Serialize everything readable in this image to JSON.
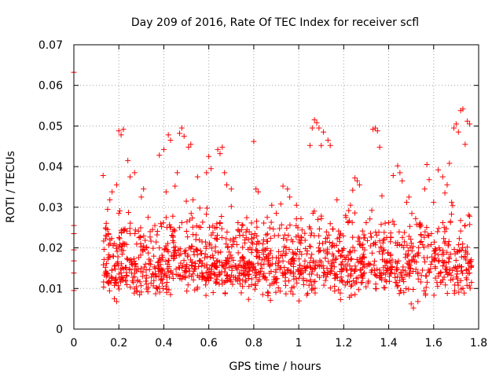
{
  "chart_data": {
    "type": "scatter",
    "title": "Day 209 of 2016, Rate Of TEC Index for receiver scfl",
    "xlabel": "GPS time / hours",
    "ylabel": "ROTI / TECUs",
    "xlim": [
      0,
      1.8
    ],
    "ylim": [
      0,
      0.07
    ],
    "xticks": [
      "0",
      "0.2",
      "0.4",
      "0.6",
      "0.8",
      "1",
      "1.2",
      "1.4",
      "1.6",
      "1.8"
    ],
    "yticks": [
      "0",
      "0.01",
      "0.02",
      "0.03",
      "0.04",
      "0.05",
      "0.06",
      "0.07"
    ],
    "grid": true,
    "marker": "plus",
    "color": "#ff0000",
    "series": [
      {
        "points": [
          [
            0.0,
            0.0632
          ],
          [
            0.0,
            0.0255
          ],
          [
            0.0,
            0.0235
          ],
          [
            0.0,
            0.0195
          ],
          [
            0.0,
            0.0168
          ],
          [
            0.0,
            0.0138
          ],
          [
            0.0,
            0.0095
          ],
          [
            0.13,
            0.0378
          ],
          [
            0.14,
            0.0152
          ],
          [
            0.14,
            0.0138
          ],
          [
            0.15,
            0.0245
          ],
          [
            0.15,
            0.0295
          ],
          [
            0.16,
            0.0318
          ],
          [
            0.16,
            0.0178
          ],
          [
            0.17,
            0.0338
          ],
          [
            0.17,
            0.0125
          ],
          [
            0.18,
            0.0155
          ],
          [
            0.18,
            0.0075
          ],
          [
            0.19,
            0.0355
          ],
          [
            0.19,
            0.0068
          ],
          [
            0.2,
            0.0488
          ],
          [
            0.2,
            0.0285
          ],
          [
            0.21,
            0.0478
          ],
          [
            0.21,
            0.0195
          ],
          [
            0.22,
            0.0492
          ],
          [
            0.22,
            0.0245
          ],
          [
            0.23,
            0.0118
          ],
          [
            0.24,
            0.0415
          ],
          [
            0.25,
            0.0375
          ],
          [
            0.25,
            0.0235
          ],
          [
            0.26,
            0.0158
          ],
          [
            0.27,
            0.0385
          ],
          [
            0.28,
            0.0092
          ],
          [
            0.29,
            0.0225
          ],
          [
            0.3,
            0.0325
          ],
          [
            0.31,
            0.0205
          ],
          [
            0.31,
            0.0345
          ],
          [
            0.32,
            0.0118
          ],
          [
            0.33,
            0.0275
          ],
          [
            0.34,
            0.0168
          ],
          [
            0.35,
            0.0245
          ],
          [
            0.36,
            0.0255
          ],
          [
            0.37,
            0.0232
          ],
          [
            0.38,
            0.0428
          ],
          [
            0.38,
            0.0148
          ],
          [
            0.39,
            0.0252
          ],
          [
            0.4,
            0.0442
          ],
          [
            0.41,
            0.0338
          ],
          [
            0.41,
            0.0205
          ],
          [
            0.42,
            0.0478
          ],
          [
            0.43,
            0.0465
          ],
          [
            0.43,
            0.0085
          ],
          [
            0.44,
            0.0278
          ],
          [
            0.45,
            0.0352
          ],
          [
            0.45,
            0.0188
          ],
          [
            0.46,
            0.0385
          ],
          [
            0.47,
            0.0482
          ],
          [
            0.48,
            0.0495
          ],
          [
            0.48,
            0.0262
          ],
          [
            0.49,
            0.0475
          ],
          [
            0.5,
            0.0315
          ],
          [
            0.5,
            0.0142
          ],
          [
            0.51,
            0.0448
          ],
          [
            0.52,
            0.0455
          ],
          [
            0.53,
            0.0318
          ],
          [
            0.54,
            0.0162
          ],
          [
            0.55,
            0.0375
          ],
          [
            0.55,
            0.0132
          ],
          [
            0.56,
            0.0298
          ],
          [
            0.57,
            0.0215
          ],
          [
            0.58,
            0.0155
          ],
          [
            0.59,
            0.0385
          ],
          [
            0.6,
            0.0425
          ],
          [
            0.6,
            0.0128
          ],
          [
            0.61,
            0.0395
          ],
          [
            0.62,
            0.0175
          ],
          [
            0.63,
            0.0118
          ],
          [
            0.64,
            0.0442
          ],
          [
            0.65,
            0.0432
          ],
          [
            0.65,
            0.0262
          ],
          [
            0.66,
            0.0448
          ],
          [
            0.67,
            0.0385
          ],
          [
            0.67,
            0.0115
          ],
          [
            0.68,
            0.0355
          ],
          [
            0.69,
            0.0152
          ],
          [
            0.7,
            0.0302
          ],
          [
            0.7,
            0.0345
          ],
          [
            0.71,
            0.0128
          ],
          [
            0.72,
            0.0225
          ],
          [
            0.73,
            0.0262
          ],
          [
            0.74,
            0.0168
          ],
          [
            0.75,
            0.0105
          ],
          [
            0.76,
            0.0212
          ],
          [
            0.77,
            0.0245
          ],
          [
            0.78,
            0.0135
          ],
          [
            0.79,
            0.0162
          ],
          [
            0.8,
            0.0462
          ],
          [
            0.8,
            0.0225
          ],
          [
            0.81,
            0.0345
          ],
          [
            0.82,
            0.0338
          ],
          [
            0.83,
            0.0142
          ],
          [
            0.84,
            0.0085
          ],
          [
            0.85,
            0.0195
          ],
          [
            0.86,
            0.0275
          ],
          [
            0.87,
            0.0155
          ],
          [
            0.88,
            0.0305
          ],
          [
            0.89,
            0.0122
          ],
          [
            0.9,
            0.0285
          ],
          [
            0.91,
            0.0175
          ],
          [
            0.92,
            0.0308
          ],
          [
            0.93,
            0.0352
          ],
          [
            0.94,
            0.0118
          ],
          [
            0.95,
            0.0345
          ],
          [
            0.96,
            0.0325
          ],
          [
            0.97,
            0.0102
          ],
          [
            0.98,
            0.0168
          ],
          [
            0.99,
            0.0305
          ],
          [
            1.0,
            0.0145
          ],
          [
            1.01,
            0.0272
          ],
          [
            1.02,
            0.0125
          ],
          [
            1.03,
            0.0198
          ],
          [
            1.04,
            0.0088
          ],
          [
            1.05,
            0.0452
          ],
          [
            1.06,
            0.0495
          ],
          [
            1.07,
            0.0515
          ],
          [
            1.08,
            0.0508
          ],
          [
            1.09,
            0.0495
          ],
          [
            1.1,
            0.0452
          ],
          [
            1.1,
            0.0165
          ],
          [
            1.11,
            0.0485
          ],
          [
            1.12,
            0.0215
          ],
          [
            1.13,
            0.0465
          ],
          [
            1.14,
            0.0452
          ],
          [
            1.15,
            0.0185
          ],
          [
            1.16,
            0.0125
          ],
          [
            1.17,
            0.0318
          ],
          [
            1.18,
            0.0225
          ],
          [
            1.19,
            0.0148
          ],
          [
            1.2,
            0.0198
          ],
          [
            1.21,
            0.0275
          ],
          [
            1.22,
            0.0262
          ],
          [
            1.23,
            0.0305
          ],
          [
            1.24,
            0.0342
          ],
          [
            1.25,
            0.0372
          ],
          [
            1.25,
            0.0085
          ],
          [
            1.26,
            0.0365
          ],
          [
            1.27,
            0.0355
          ],
          [
            1.28,
            0.0165
          ],
          [
            1.29,
            0.0232
          ],
          [
            1.3,
            0.0262
          ],
          [
            1.31,
            0.0118
          ],
          [
            1.32,
            0.0205
          ],
          [
            1.33,
            0.0492
          ],
          [
            1.34,
            0.0495
          ],
          [
            1.35,
            0.0488
          ],
          [
            1.36,
            0.0448
          ],
          [
            1.37,
            0.0328
          ],
          [
            1.38,
            0.0195
          ],
          [
            1.39,
            0.0145
          ],
          [
            1.4,
            0.0262
          ],
          [
            1.41,
            0.0225
          ],
          [
            1.42,
            0.0378
          ],
          [
            1.43,
            0.0115
          ],
          [
            1.44,
            0.0402
          ],
          [
            1.45,
            0.0385
          ],
          [
            1.46,
            0.0365
          ],
          [
            1.47,
            0.0215
          ],
          [
            1.48,
            0.0312
          ],
          [
            1.49,
            0.0325
          ],
          [
            1.5,
            0.0062
          ],
          [
            1.51,
            0.0052
          ],
          [
            1.52,
            0.0272
          ],
          [
            1.53,
            0.0068
          ],
          [
            1.54,
            0.0258
          ],
          [
            1.55,
            0.0145
          ],
          [
            1.56,
            0.0345
          ],
          [
            1.57,
            0.0405
          ],
          [
            1.58,
            0.0368
          ],
          [
            1.59,
            0.0235
          ],
          [
            1.6,
            0.0312
          ],
          [
            1.61,
            0.0195
          ],
          [
            1.62,
            0.0392
          ],
          [
            1.63,
            0.0138
          ],
          [
            1.64,
            0.0375
          ],
          [
            1.65,
            0.0335
          ],
          [
            1.66,
            0.0355
          ],
          [
            1.67,
            0.0408
          ],
          [
            1.68,
            0.0312
          ],
          [
            1.69,
            0.0495
          ],
          [
            1.7,
            0.0505
          ],
          [
            1.71,
            0.0485
          ],
          [
            1.72,
            0.0538
          ],
          [
            1.73,
            0.0542
          ],
          [
            1.74,
            0.0455
          ],
          [
            1.74,
            0.0255
          ],
          [
            1.75,
            0.0512
          ],
          [
            1.75,
            0.0185
          ],
          [
            1.76,
            0.0505
          ],
          [
            1.76,
            0.0278
          ],
          [
            1.76,
            0.0138
          ]
        ]
      }
    ],
    "background_band": {
      "x_start": 0.13,
      "x_end": 1.77,
      "y_center": 0.0145,
      "y_spread": 0.005,
      "count": 900,
      "seed": 20160727
    },
    "mid_band": {
      "x_start": 0.13,
      "x_end": 1.77,
      "y_center": 0.022,
      "y_spread": 0.006,
      "count": 450,
      "seed": 7
    }
  }
}
